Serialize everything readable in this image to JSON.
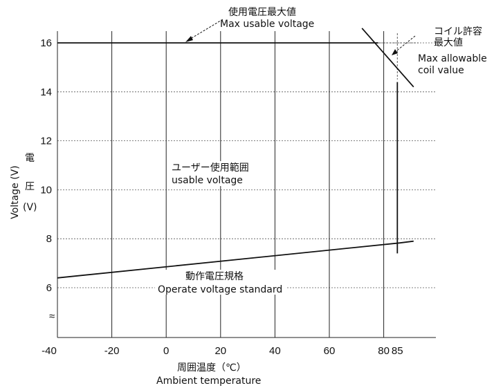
{
  "chart_data": {
    "type": "line",
    "xlabel_jp": "周囲温度（℃）",
    "xlabel": "Ambient temperature",
    "ylabel": "Voltage (V)",
    "ylabel_jp": [
      "電",
      "圧",
      "(V)"
    ],
    "xlim": [
      -40,
      90
    ],
    "ylim": [
      4,
      16.6
    ],
    "x_ticks": [
      "-40",
      "-20",
      "0",
      "20",
      "40",
      "60",
      "80",
      "85"
    ],
    "y_ticks": [
      "6",
      "8",
      "10",
      "12",
      "14",
      "16"
    ],
    "axis_break_symbol": "≈",
    "series": [
      {
        "key": "max_usable",
        "x": [
          -40,
          78
        ],
        "y": [
          16,
          16
        ]
      },
      {
        "key": "max_coil",
        "x": [
          72,
          91
        ],
        "y": [
          16.6,
          14.2
        ]
      },
      {
        "key": "operate",
        "x": [
          -40,
          86,
          91
        ],
        "y": [
          6.4,
          7.83,
          7.9
        ]
      },
      {
        "key": "limit_85",
        "x": [
          85,
          85
        ],
        "y": [
          7.4,
          14.4
        ]
      }
    ],
    "annotations": {
      "max_usable_jp": "使用電圧最大値",
      "max_usable_en": "Max usable voltage",
      "max_coil_jp_1": "コイル許容",
      "max_coil_jp_2": "最大値",
      "max_coil_en_1": "Max allowable",
      "max_coil_en_2": "coil value",
      "usable_range_jp": "ユーザー使用範囲",
      "usable_range_en": "usable voltage",
      "operate_jp": "動作電圧規格",
      "operate_en": "Operate voltage standard"
    }
  }
}
